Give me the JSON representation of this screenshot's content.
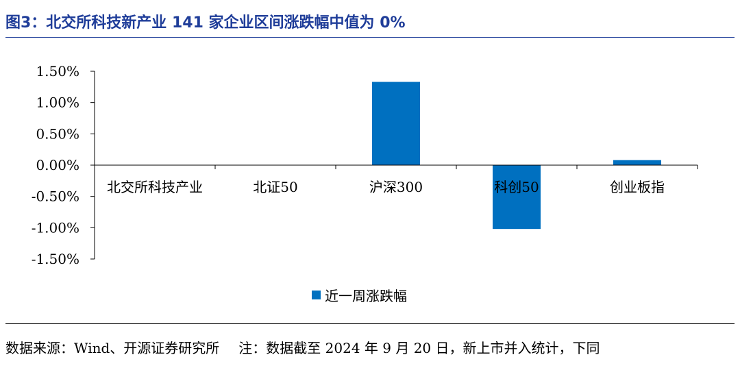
{
  "header": {
    "title": "图3：北交所科技新产业 141 家企业区间涨跌幅中值为 0%"
  },
  "chart_data": {
    "type": "bar",
    "categories": [
      "北交所科技产业",
      "北证50",
      "沪深300",
      "科创50",
      "创业板指"
    ],
    "series": [
      {
        "name": "近一周涨跌幅",
        "values": [
          0.0,
          0.0,
          1.33,
          -1.02,
          0.08
        ]
      }
    ],
    "ylim": [
      -1.5,
      1.5
    ],
    "yticks": [
      1.5,
      1.0,
      0.5,
      0.0,
      -0.5,
      -1.0,
      -1.5
    ],
    "ytick_labels": [
      "1.50%",
      "1.00%",
      "0.50%",
      "0.00%",
      "-0.50%",
      "-1.00%",
      "-1.50%"
    ],
    "bar_color": "#0070c0",
    "legend_position": "bottom",
    "grid": false
  },
  "footer": {
    "source": "数据来源：Wind、开源证券研究所",
    "note": "注：数据截至 2024 年 9 月 20 日，新上市并入统计，下同"
  },
  "colors": {
    "title": "#1f3d99",
    "bar": "#0070c0"
  }
}
